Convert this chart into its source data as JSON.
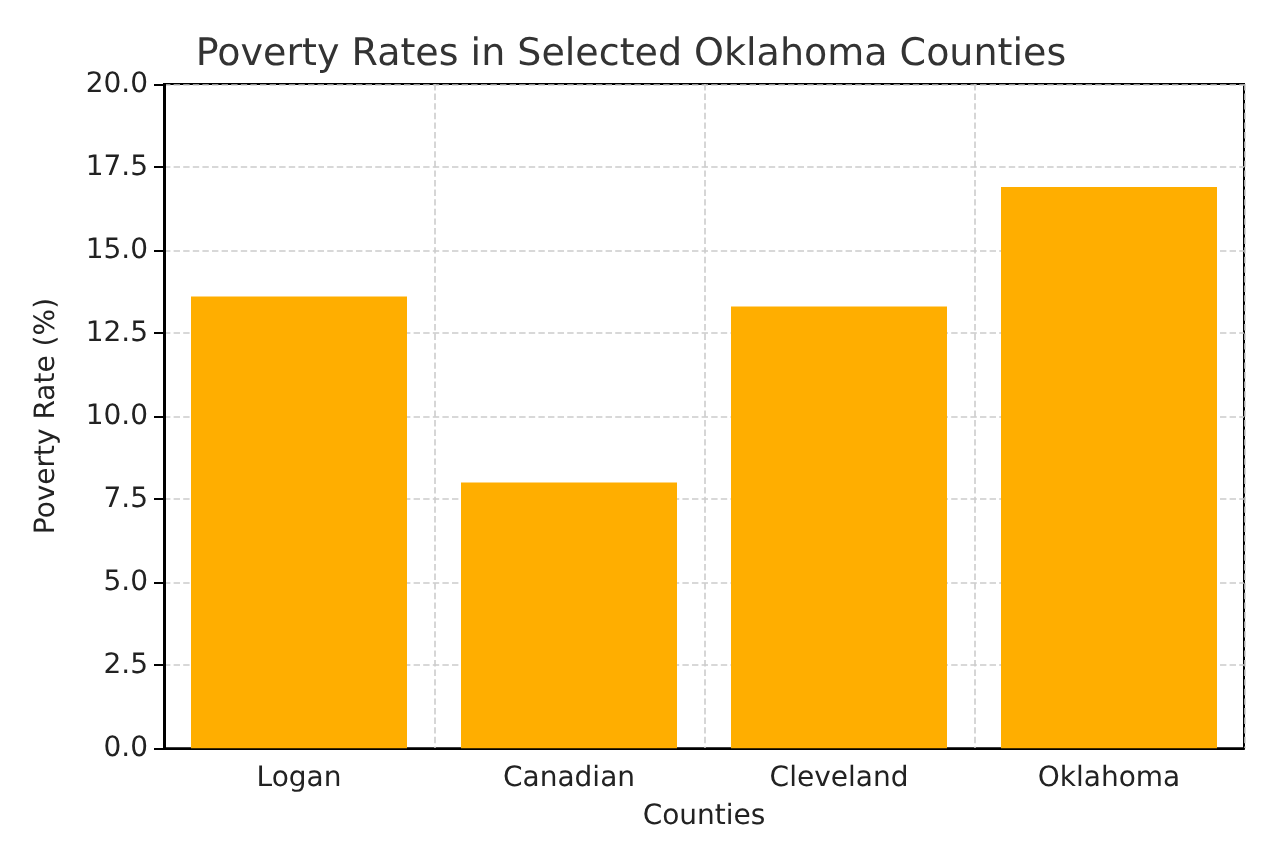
{
  "chart_data": {
    "type": "bar",
    "title": "Poverty Rates in Selected Oklahoma Counties",
    "xlabel": "Counties",
    "ylabel": "Poverty Rate (%)",
    "categories": [
      "Logan",
      "Canadian",
      "Cleveland",
      "Oklahoma"
    ],
    "values": [
      13.6,
      8.0,
      13.3,
      16.9
    ],
    "color": "#ffae00",
    "ylim": [
      0,
      20
    ],
    "yticks": [
      {
        "value": 0,
        "label": "0.0"
      },
      {
        "value": 2.5,
        "label": "2.5"
      },
      {
        "value": 5,
        "label": "5.0"
      },
      {
        "value": 7.5,
        "label": "7.5"
      },
      {
        "value": 10,
        "label": "10.0"
      },
      {
        "value": 12.5,
        "label": "12.5"
      },
      {
        "value": 15,
        "label": "15.0"
      },
      {
        "value": 17.5,
        "label": "17.5"
      },
      {
        "value": 20,
        "label": "20.0"
      }
    ],
    "grid": true
  }
}
